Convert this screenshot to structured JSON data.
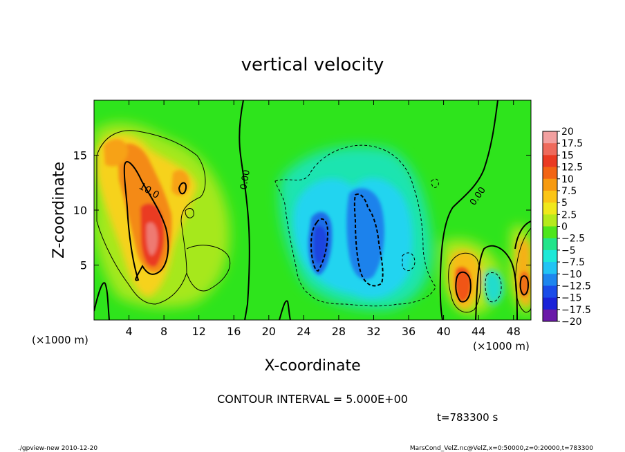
{
  "chart_data": {
    "type": "heatmap",
    "title": "vertical velocity",
    "xlabel": "X-coordinate",
    "ylabel": "Z-coordinate",
    "x_unit_left": "(×1000 m)",
    "x_unit_right": "(×1000 m)",
    "xlim": [
      0,
      50
    ],
    "ylim": [
      0,
      20
    ],
    "x_ticks": [
      {
        "value": 4,
        "label": "4"
      },
      {
        "value": 8,
        "label": "8"
      },
      {
        "value": 12,
        "label": "12"
      },
      {
        "value": 16,
        "label": "16"
      },
      {
        "value": 20,
        "label": "20"
      },
      {
        "value": 24,
        "label": "24"
      },
      {
        "value": 28,
        "label": "28"
      },
      {
        "value": 32,
        "label": "32"
      },
      {
        "value": 36,
        "label": "36"
      },
      {
        "value": 40,
        "label": "40"
      },
      {
        "value": 44,
        "label": "44"
      },
      {
        "value": 48,
        "label": "48"
      }
    ],
    "y_ticks": [
      {
        "value": 5,
        "label": "5"
      },
      {
        "value": 10,
        "label": "10"
      },
      {
        "value": 15,
        "label": "15"
      }
    ],
    "colorbar": {
      "levels": [
        {
          "value": 20,
          "label": "20",
          "color": "#f2a0a0"
        },
        {
          "value": 17.5,
          "label": "17.5",
          "color": "#ee6a5c"
        },
        {
          "value": 15,
          "label": "15",
          "color": "#ea3a22"
        },
        {
          "value": 12.5,
          "label": "12.5",
          "color": "#f26414"
        },
        {
          "value": 10,
          "label": "10",
          "color": "#f79a10"
        },
        {
          "value": 7.5,
          "label": "7.5",
          "color": "#fbc516"
        },
        {
          "value": 5,
          "label": "5",
          "color": "#f0e81c"
        },
        {
          "value": 2.5,
          "label": "2.5",
          "color": "#b5ea1c"
        },
        {
          "value": 0,
          "label": "0",
          "color": "#4ee61c"
        },
        {
          "value": -2.5,
          "label": "−2.5",
          "color": "#22e48a"
        },
        {
          "value": -5,
          "label": "−5",
          "color": "#1ee8d8"
        },
        {
          "value": -7.5,
          "label": "−7.5",
          "color": "#22c4f4"
        },
        {
          "value": -10,
          "label": "−10",
          "color": "#1e86ee"
        },
        {
          "value": -12.5,
          "label": "−12.5",
          "color": "#1a4ce8"
        },
        {
          "value": -15,
          "label": "−15",
          "color": "#1a22d8"
        },
        {
          "value": -17.5,
          "label": "−17.5",
          "color": "#2a12b8"
        },
        {
          "value": -20,
          "label": "−20",
          "color": "#6a1aa8"
        }
      ]
    },
    "contour_labels": [
      "10.0",
      "0.00",
      "0.00"
    ],
    "features": [
      {
        "x": 6.5,
        "z": 8,
        "value": 17,
        "kind": "updraft"
      },
      {
        "x": 4,
        "z": 15,
        "value": 9,
        "kind": "updraft"
      },
      {
        "x": 10,
        "z": 13,
        "value": 8,
        "kind": "updraft"
      },
      {
        "x": 26,
        "z": 7,
        "value": -12,
        "kind": "downdraft"
      },
      {
        "x": 31,
        "z": 9,
        "value": -10,
        "kind": "downdraft"
      },
      {
        "x": 42,
        "z": 3,
        "value": 11,
        "kind": "updraft"
      },
      {
        "x": 49,
        "z": 3,
        "value": 10,
        "kind": "updraft"
      }
    ],
    "contour_interval_text": "CONTOUR INTERVAL = 5.000E+00",
    "time_text": "t=783300 s",
    "footer_left": "./gpview-new  2010-12-20",
    "footer_right": "MarsCond_VelZ.nc@VelZ,x=0:50000,z=0:20000,t=783300"
  }
}
